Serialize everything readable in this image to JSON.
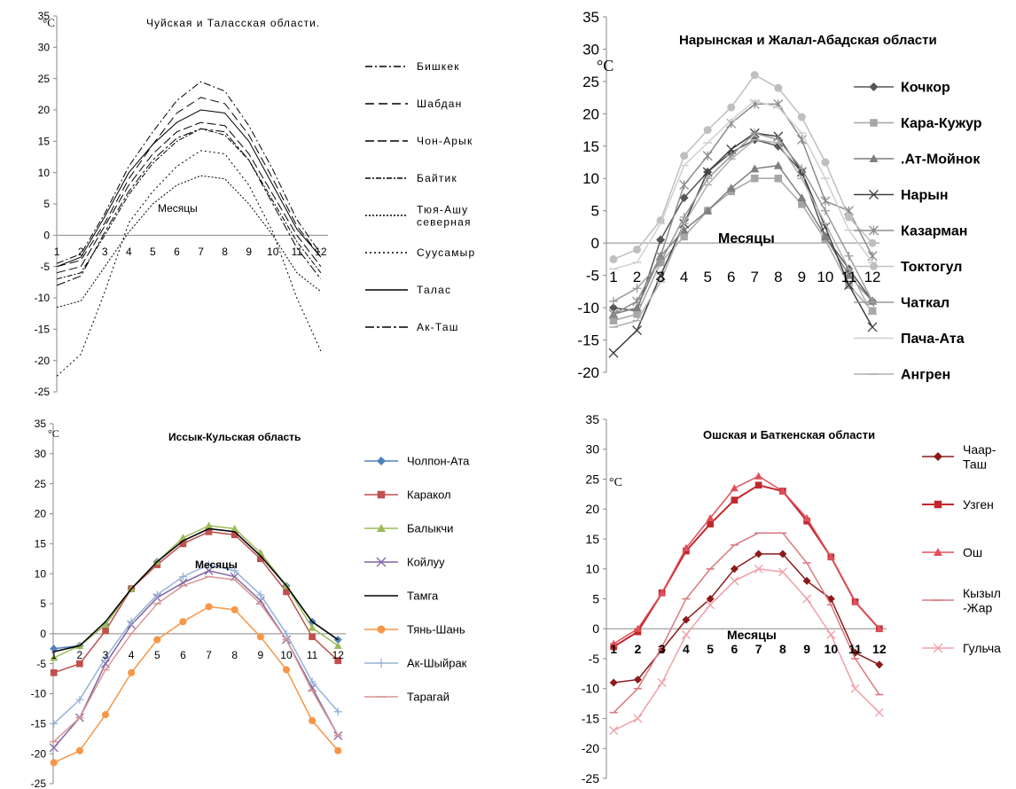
{
  "chart_data": [
    {
      "type": "line",
      "title": "Чуйская и Таласская области.",
      "unit_label": "°C",
      "xlabel": "Месяцы",
      "x": [
        1,
        2,
        3,
        4,
        5,
        6,
        7,
        8,
        9,
        10,
        11,
        12
      ],
      "ylim": [
        -25,
        35
      ],
      "yticks": [
        35,
        30,
        25,
        20,
        15,
        10,
        5,
        0,
        -5,
        -10,
        -15,
        -20,
        -25
      ],
      "series": [
        {
          "name": "Бишкек",
          "color": "#000000",
          "dash": "8,3,2,3",
          "width": 1,
          "marker": "none",
          "values": [
            -4.5,
            -3,
            3.5,
            11,
            16.5,
            21.5,
            24.5,
            23,
            17.5,
            10.5,
            2.5,
            -3
          ]
        },
        {
          "name": "Шабдан",
          "color": "#000000",
          "dash": "10,5",
          "width": 1,
          "marker": "none",
          "values": [
            -5,
            -4,
            2,
            9,
            14.5,
            19.5,
            22,
            21,
            16,
            9,
            1.5,
            -3.5
          ]
        },
        {
          "name": "Чон-Арык",
          "color": "#000000",
          "dash": "10,4",
          "width": 1,
          "marker": "none",
          "values": [
            -6,
            -5,
            1.5,
            8,
            13,
            16.5,
            18,
            17.5,
            13,
            6.5,
            0,
            -5
          ]
        },
        {
          "name": "Байтик",
          "color": "#000000",
          "dash": "6,2,2,2",
          "width": 1,
          "marker": "none",
          "values": [
            -7,
            -6,
            0,
            6.5,
            11.5,
            15,
            17,
            16,
            12,
            5.5,
            -1,
            -6
          ]
        },
        {
          "name": "Тюя-Ашу северная",
          "color": "#000000",
          "dash": "2,2",
          "width": 1,
          "marker": "none",
          "values": [
            -11.5,
            -10.5,
            -5,
            0.5,
            5,
            8,
            9.5,
            9,
            5,
            0,
            -6,
            -9
          ]
        },
        {
          "name": "Суусамыр",
          "color": "#000000",
          "dash": "2,3",
          "width": 1,
          "marker": "none",
          "values": [
            -22.5,
            -19,
            -9,
            2,
            7,
            11,
            13.5,
            13,
            8,
            0.5,
            -10,
            -18.5
          ]
        },
        {
          "name": "Талас",
          "color": "#000000",
          "dash": "",
          "width": 1,
          "marker": "none",
          "values": [
            -5,
            -3.5,
            3,
            10,
            14.5,
            18,
            20,
            19.5,
            15,
            8,
            1,
            -3.5
          ]
        },
        {
          "name": "Ак-Таш",
          "color": "#000000",
          "dash": "10,3,3,3",
          "width": 1,
          "marker": "none",
          "values": [
            -8,
            -6.5,
            0.5,
            7,
            12,
            15.5,
            17,
            16.5,
            12,
            5,
            -2,
            -7
          ]
        }
      ]
    },
    {
      "type": "line",
      "title": "Нарынская и Жалал-Абадская области",
      "unit_label": "°C",
      "xlabel": "Месяцы",
      "x": [
        1,
        2,
        3,
        4,
        5,
        6,
        7,
        8,
        9,
        10,
        11,
        12
      ],
      "ylim": [
        -20,
        35
      ],
      "yticks": [
        35,
        30,
        25,
        20,
        15,
        10,
        5,
        0,
        -5,
        -10,
        -15,
        -20
      ],
      "series": [
        {
          "name": "Кочкор",
          "color": "#555555",
          "dash": "",
          "width": 1.5,
          "marker": "diamond",
          "values": [
            -10,
            -10.5,
            0.5,
            7,
            11,
            14,
            16,
            15,
            11,
            1,
            -4,
            -9
          ]
        },
        {
          "name": "Кара-Кужур",
          "color": "#a6a6a6",
          "dash": "",
          "width": 1.5,
          "marker": "square",
          "values": [
            -12,
            -11,
            -3,
            1,
            5,
            8,
            10,
            10,
            6,
            0.5,
            -6.5,
            -10.5
          ]
        },
        {
          "name": ".Ат-Мойнок",
          "color": "#7f7f7f",
          "dash": "",
          "width": 1.5,
          "marker": "triangle",
          "values": [
            -11,
            -10,
            -2,
            2,
            5,
            8.5,
            11.5,
            12,
            7,
            1,
            -5,
            -9
          ]
        },
        {
          "name": "Нарын",
          "color": "#404040",
          "dash": "",
          "width": 1.5,
          "marker": "x",
          "values": [
            -17,
            -13.5,
            -5,
            3,
            11,
            14.5,
            17,
            16.5,
            11,
            2.5,
            -6.5,
            -13
          ]
        },
        {
          "name": "Казарман",
          "color": "#8c8c8c",
          "dash": "",
          "width": 1.5,
          "marker": "star",
          "values": [
            -11,
            -9,
            -2,
            9,
            13.5,
            18.5,
            21.5,
            21.5,
            16,
            6.5,
            5,
            -2
          ]
        },
        {
          "name": "Токтогул",
          "color": "#bfbfbf",
          "dash": "",
          "width": 1.5,
          "marker": "circle",
          "values": [
            -2.5,
            -1,
            3.5,
            13.5,
            17.5,
            21,
            26,
            24,
            19.5,
            12.5,
            4,
            0
          ]
        },
        {
          "name": "Чаткал",
          "color": "#999999",
          "dash": "",
          "width": 1.5,
          "marker": "plus",
          "values": [
            -9,
            -7,
            -3,
            4,
            10,
            13.5,
            17,
            16,
            11.5,
            5,
            -2,
            -9
          ]
        },
        {
          "name": "Пача-Ата",
          "color": "#d0d0d0",
          "dash": "",
          "width": 1.5,
          "marker": "dash",
          "values": [
            -4,
            -3,
            3,
            12,
            15.5,
            19,
            22,
            21,
            17,
            10,
            2,
            -3
          ]
        },
        {
          "name": "Ангрен",
          "color": "#b0b0b0",
          "dash": "",
          "width": 1.5,
          "marker": "dash",
          "values": [
            -13,
            -12,
            -6,
            3,
            9,
            13,
            16,
            15.5,
            10,
            3,
            -4,
            -11
          ]
        }
      ]
    },
    {
      "type": "line",
      "title": "Иссык-Кульская область",
      "unit_label": "°C",
      "xlabel": "Месяцы",
      "x": [
        1,
        2,
        3,
        4,
        5,
        6,
        7,
        8,
        9,
        10,
        11,
        12
      ],
      "ylim": [
        -25,
        35
      ],
      "yticks": [
        35,
        30,
        25,
        20,
        15,
        10,
        5,
        0,
        -5,
        -10,
        -15,
        -20,
        -25
      ],
      "series": [
        {
          "name": "Чолпон-Ата",
          "color": "#4f81bd",
          "dash": "",
          "width": 1.5,
          "marker": "diamond",
          "values": [
            -2.5,
            -2,
            1.5,
            7.5,
            12,
            15.5,
            17.5,
            17,
            13,
            8,
            2,
            -1
          ]
        },
        {
          "name": "Каракол",
          "color": "#c0504d",
          "dash": "",
          "width": 1.5,
          "marker": "square",
          "values": [
            -6.5,
            -5,
            0.5,
            7.5,
            11.5,
            15,
            17,
            16.5,
            12.5,
            7,
            -0.5,
            -4.5
          ]
        },
        {
          "name": "Балыкчи",
          "color": "#9bbb59",
          "dash": "",
          "width": 1.5,
          "marker": "triangle",
          "values": [
            -4,
            -2,
            1.5,
            7.5,
            12,
            16,
            18,
            17.5,
            13.5,
            8,
            1,
            -2
          ]
        },
        {
          "name": "Койлуу",
          "color": "#8064a2",
          "dash": "",
          "width": 1.5,
          "marker": "x",
          "values": [
            -19,
            -14,
            -5,
            1.5,
            6,
            8.5,
            10.5,
            9.5,
            5.5,
            -1,
            -9,
            -17
          ]
        },
        {
          "name": "Тамга",
          "color": "#000000",
          "dash": "",
          "width": 1.5,
          "marker": "none",
          "values": [
            -3,
            -2,
            2,
            7.5,
            12,
            15.5,
            17.5,
            17,
            13,
            8,
            2,
            -1
          ]
        },
        {
          "name": "Тянь-Шань",
          "color": "#f79646",
          "dash": "",
          "width": 1.5,
          "marker": "circle",
          "values": [
            -21.5,
            -19.5,
            -13.5,
            -6.5,
            -1,
            2,
            4.5,
            4,
            -0.5,
            -6,
            -14.5,
            -19.5
          ]
        },
        {
          "name": "Ак-Шыйрак",
          "color": "#95b3d7",
          "dash": "",
          "width": 1.5,
          "marker": "plus",
          "values": [
            -15,
            -11,
            -4,
            2,
            6.5,
            9.5,
            11.5,
            10.5,
            6.5,
            0,
            -8,
            -13
          ]
        },
        {
          "name": "Тарагай",
          "color": "#d99694",
          "dash": "",
          "width": 1.5,
          "marker": "dash",
          "values": [
            -18,
            -14,
            -6,
            0,
            5,
            8,
            9.5,
            9,
            5,
            -1,
            -9.5,
            -17
          ]
        }
      ]
    },
    {
      "type": "line",
      "title": "Ошская и Баткенская области",
      "unit_label": "°C",
      "xlabel": "Месяцы",
      "x": [
        1,
        2,
        3,
        4,
        5,
        6,
        7,
        8,
        9,
        10,
        11,
        12
      ],
      "ylim": [
        -25,
        35
      ],
      "yticks": [
        35,
        30,
        25,
        20,
        15,
        10,
        5,
        0,
        -5,
        -10,
        -15,
        -20,
        -25
      ],
      "series": [
        {
          "name": "Чаар-Таш",
          "color": "#8b1a1a",
          "dash": "",
          "width": 1.5,
          "marker": "diamond",
          "values": [
            -9,
            -8.5,
            -3.5,
            1.5,
            5,
            10,
            12.5,
            12.5,
            8,
            5,
            -4,
            -6
          ]
        },
        {
          "name": "Узген",
          "color": "#c0282d",
          "dash": "",
          "width": 2,
          "marker": "square",
          "values": [
            -3,
            -0.5,
            6,
            13,
            17.5,
            21.5,
            24,
            23,
            18,
            12,
            4.5,
            0
          ]
        },
        {
          "name": "Ош",
          "color": "#e0505a",
          "dash": "",
          "width": 1.5,
          "marker": "triangle",
          "values": [
            -2.5,
            0,
            6,
            13.5,
            18.5,
            23.5,
            25.5,
            23,
            18.5,
            12,
            4.5,
            0
          ]
        },
        {
          "name": "Кызыл -Жар",
          "color": "#d97a80",
          "dash": "",
          "width": 1.5,
          "marker": "dash",
          "values": [
            -14,
            -10,
            -3,
            5,
            10,
            14,
            16,
            16,
            11,
            4,
            -5,
            -11
          ]
        },
        {
          "name": "Гульча",
          "color": "#f0a0a8",
          "dash": "",
          "width": 1.5,
          "marker": "x",
          "values": [
            -17,
            -15,
            -9,
            -1,
            4,
            8,
            10,
            9.5,
            5,
            -1,
            -10,
            -14
          ]
        }
      ]
    }
  ]
}
